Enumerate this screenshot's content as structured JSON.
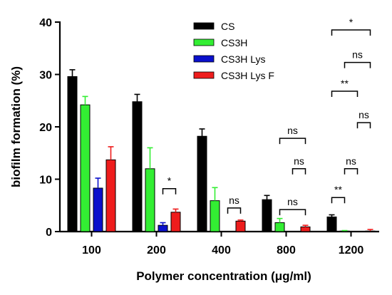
{
  "chart_data": {
    "type": "bar",
    "title": "",
    "xlabel": "Polymer concentration (μg/ml)",
    "ylabel": "biofilm formation (%)",
    "ylim": [
      0,
      40
    ],
    "yticks": [
      0,
      10,
      20,
      30,
      40
    ],
    "categories": [
      "100",
      "200",
      "400",
      "800",
      "1200"
    ],
    "series": [
      {
        "name": "CS",
        "color": "#000000",
        "values": [
          29.6,
          24.8,
          18.2,
          6.1,
          2.8
        ],
        "errors": [
          1.3,
          1.4,
          1.4,
          0.8,
          0.4
        ]
      },
      {
        "name": "CS3H",
        "color": "#33ee33",
        "values": [
          24.2,
          12.0,
          5.9,
          1.7,
          0.1
        ],
        "errors": [
          1.6,
          4.0,
          2.5,
          0.8,
          0.1
        ]
      },
      {
        "name": "CS3H Lys",
        "color": "#0a10cc",
        "values": [
          8.3,
          1.2,
          0.0,
          0.0,
          0.0
        ],
        "errors": [
          1.9,
          0.5,
          0.0,
          0.0,
          0.0
        ]
      },
      {
        "name": "CS3H Lys F",
        "color": "#ee1c1c",
        "values": [
          13.7,
          3.7,
          2.0,
          0.9,
          0.1
        ],
        "errors": [
          2.5,
          0.6,
          0.2,
          0.3,
          0.3
        ]
      }
    ],
    "legend_position": "top-right",
    "grid": false,
    "significance": [
      {
        "label": "*",
        "category": 1,
        "from_series": 2,
        "to_series": 3,
        "y": 8.2
      },
      {
        "label": "ns",
        "category": 2,
        "from_series": 2,
        "to_series": 3,
        "y": 4.5
      },
      {
        "label": "ns",
        "category": 3,
        "from_series": 1,
        "to_series": 3,
        "y": 4.2
      },
      {
        "label": "ns",
        "category": 3,
        "from_series": 2,
        "to_series": 3,
        "y": 12.0
      },
      {
        "label": "ns",
        "category": 3,
        "from_series": 1,
        "to_series": 3,
        "y": 17.8
      },
      {
        "label": "**",
        "category": 4,
        "from_series": 0,
        "to_series": 1,
        "y": 6.5
      },
      {
        "label": "ns",
        "category": 4,
        "from_series": 1,
        "to_series": 2,
        "y": 12.0
      },
      {
        "label": "ns",
        "category": 4,
        "from_series": 2,
        "to_series": 3,
        "y": 20.8
      },
      {
        "label": "**",
        "category": 4,
        "from_series": 0,
        "to_series": 2,
        "y": 26.8
      },
      {
        "label": "ns",
        "category": 4,
        "from_series": 1,
        "to_series": 3,
        "y": 32.3
      },
      {
        "label": "*",
        "category": 4,
        "from_series": 0,
        "to_series": 3,
        "y": 38.5
      }
    ]
  }
}
